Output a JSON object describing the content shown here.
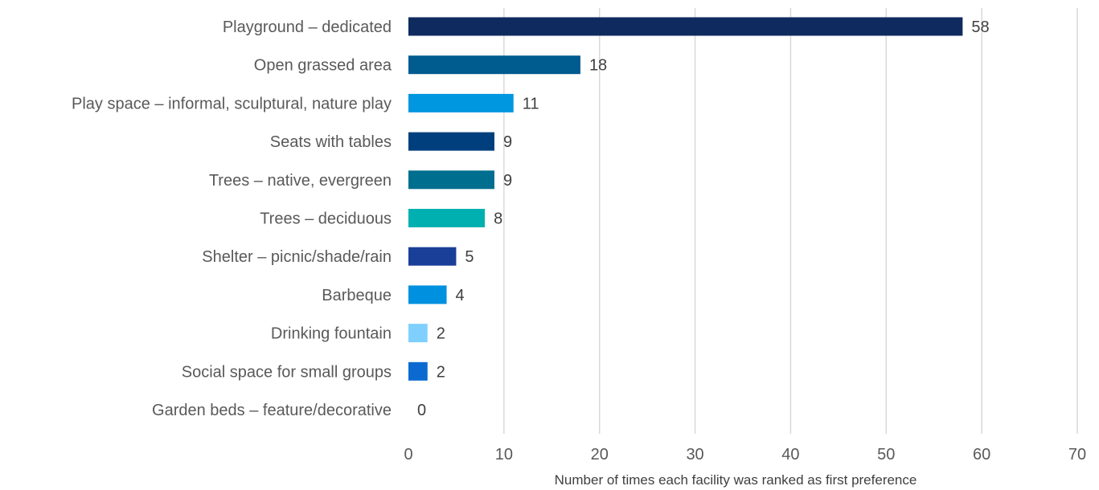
{
  "chart_data": {
    "type": "bar",
    "orientation": "horizontal",
    "categories": [
      "Playground – dedicated",
      "Open grassed area",
      "Play space – informal, sculptural, nature play",
      "Seats with tables",
      "Trees – native, evergreen",
      "Trees – deciduous",
      "Shelter – picnic/shade/rain",
      "Barbeque",
      "Drinking fountain",
      "Social space for small groups",
      "Garden beds – feature/decorative"
    ],
    "values": [
      58,
      18,
      11,
      9,
      9,
      8,
      5,
      4,
      2,
      2,
      0
    ],
    "colors": [
      "#0f2a5e",
      "#005b8f",
      "#0096e0",
      "#003f7d",
      "#006e8f",
      "#00b0b0",
      "#1a3f99",
      "#0090e0",
      "#80d0ff",
      "#0a6ad0",
      "#cccccc"
    ],
    "xlabel": "Number of times each facility was ranked as first preference",
    "ylabel": "",
    "title": "",
    "xlim": [
      0,
      70
    ],
    "xticks": [
      0,
      10,
      20,
      30,
      40,
      50,
      60,
      70
    ],
    "grid": "vertical",
    "legend": "none"
  }
}
